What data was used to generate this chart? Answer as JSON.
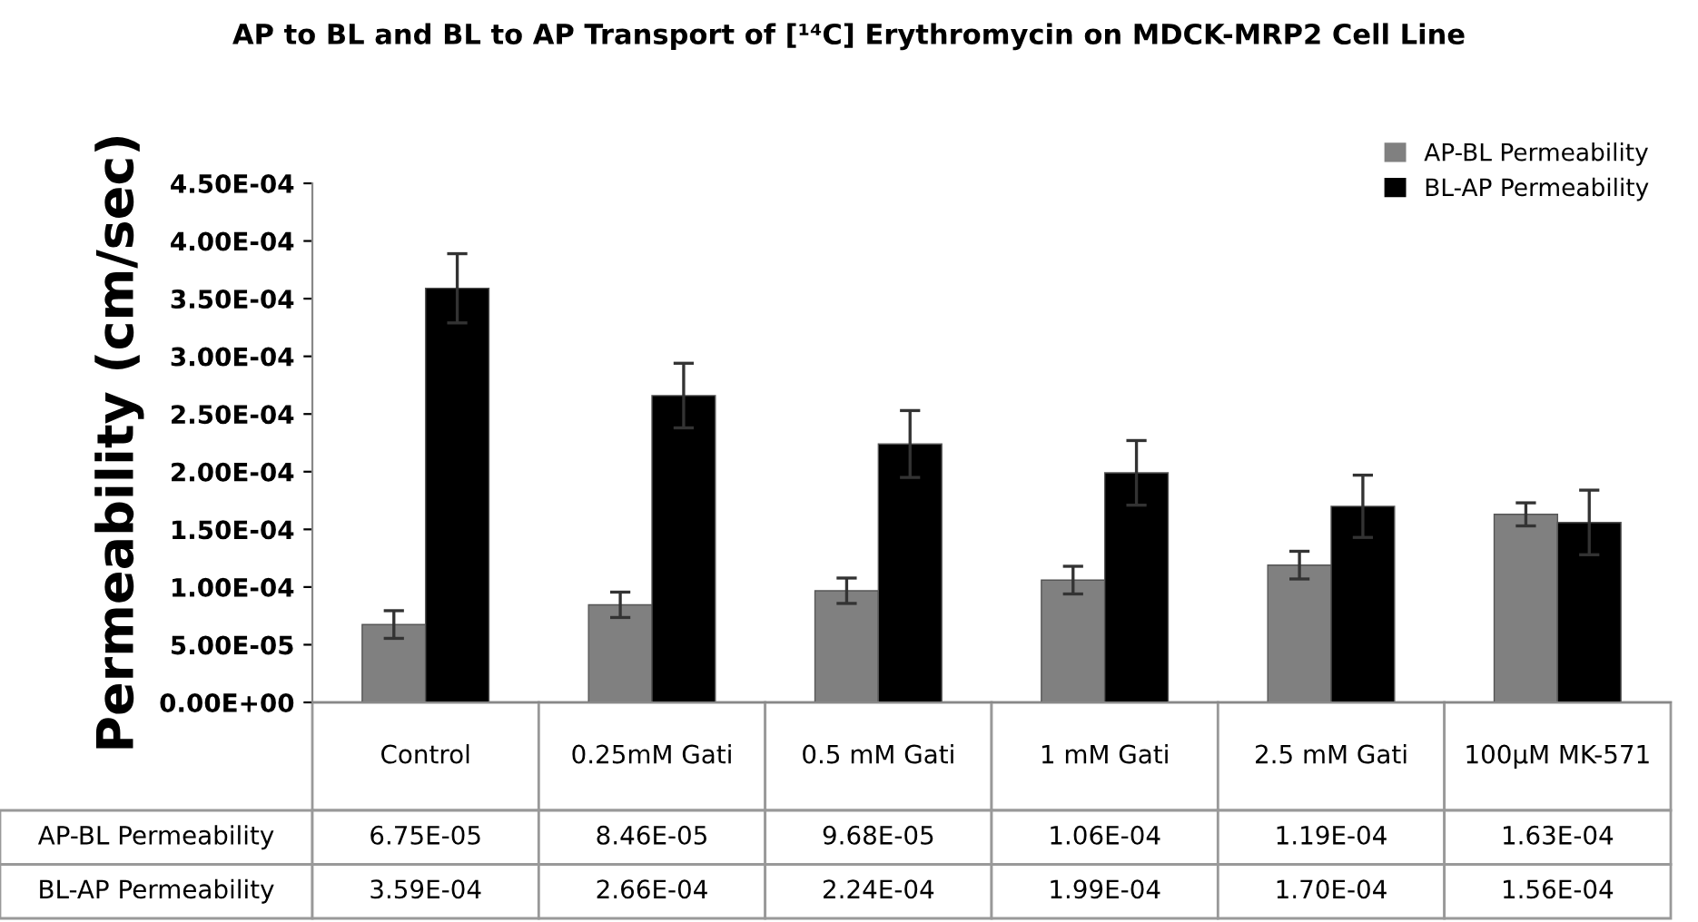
{
  "chart_data": {
    "type": "bar",
    "title": "AP to BL and BL to AP Transport of [¹⁴C] Erythromycin on MDCK-MRP2 Cell Line",
    "ylabel": "Permeability (cm/sec)",
    "categories": [
      "Control",
      "0.25mM Gati",
      "0.5 mM Gati",
      "1 mM Gati",
      "2.5 mM Gati",
      "100μM MK-571"
    ],
    "series": [
      {
        "name": "AP-BL Permeability",
        "color": "#808080",
        "values": [
          6.75e-05,
          8.46e-05,
          9.68e-05,
          0.000106,
          0.000119,
          0.000163
        ],
        "value_labels": [
          "6.75E-05",
          "8.46E-05",
          "9.68E-05",
          "1.06E-04",
          "1.19E-04",
          "1.63E-04"
        ],
        "errors": [
          1.2e-05,
          1.1e-05,
          1.1e-05,
          1.2e-05,
          1.2e-05,
          1e-05
        ]
      },
      {
        "name": "BL-AP Permeability",
        "color": "#000000",
        "values": [
          0.000359,
          0.000266,
          0.000224,
          0.000199,
          0.00017,
          0.000156
        ],
        "value_labels": [
          "3.59E-04",
          "2.66E-04",
          "2.24E-04",
          "1.99E-04",
          "1.70E-04",
          "1.56E-04"
        ],
        "errors": [
          3e-05,
          2.8e-05,
          2.9e-05,
          2.8e-05,
          2.7e-05,
          2.8e-05
        ]
      }
    ],
    "ylim": [
      0,
      0.00045
    ],
    "yticks": [
      {
        "value": 0,
        "label": "0.00E+00"
      },
      {
        "value": 5e-05,
        "label": "5.00E-05"
      },
      {
        "value": 0.0001,
        "label": "1.00E-04"
      },
      {
        "value": 0.00015,
        "label": "1.50E-04"
      },
      {
        "value": 0.0002,
        "label": "2.00E-04"
      },
      {
        "value": 0.00025,
        "label": "2.50E-04"
      },
      {
        "value": 0.0003,
        "label": "3.00E-04"
      },
      {
        "value": 0.00035,
        "label": "3.50E-04"
      },
      {
        "value": 0.0004,
        "label": "4.00E-04"
      },
      {
        "value": 0.00045,
        "label": "4.50E-04"
      }
    ],
    "grid": false,
    "legend": "top right"
  }
}
